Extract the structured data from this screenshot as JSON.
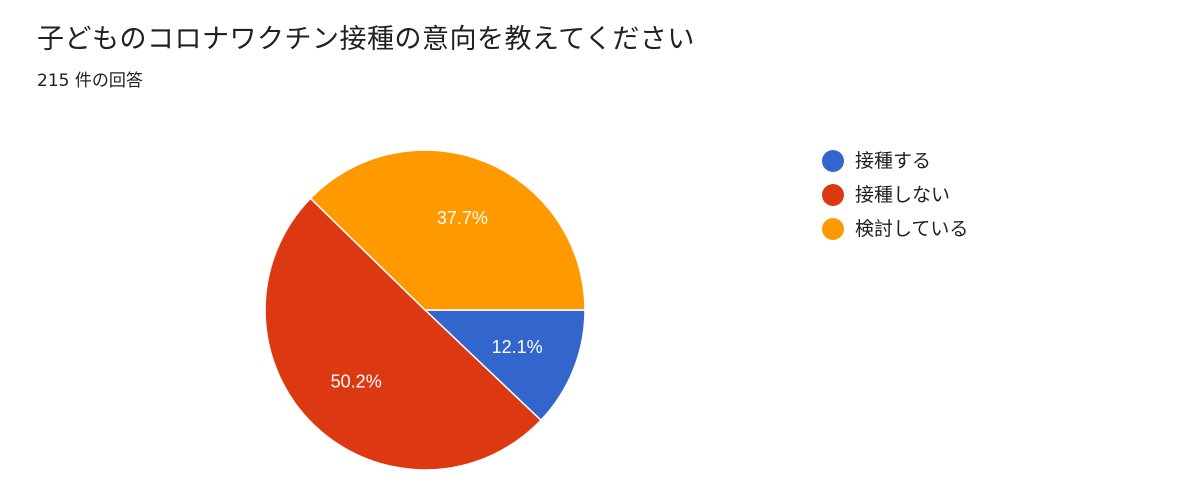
{
  "chart_data": {
    "type": "pie",
    "title": "子どものコロナワクチン接種の意向を教えてください",
    "subtitle": "215 件の回答",
    "legend_position": "right",
    "slices": [
      {
        "label": "接種する",
        "value": 12.1,
        "value_label": "12.1%",
        "color": "#3366cc"
      },
      {
        "label": "接種しない",
        "value": 50.2,
        "value_label": "50.2%",
        "color": "#dc3912"
      },
      {
        "label": "検討している",
        "value": 37.7,
        "value_label": "37.7%",
        "color": "#ff9900"
      }
    ]
  }
}
